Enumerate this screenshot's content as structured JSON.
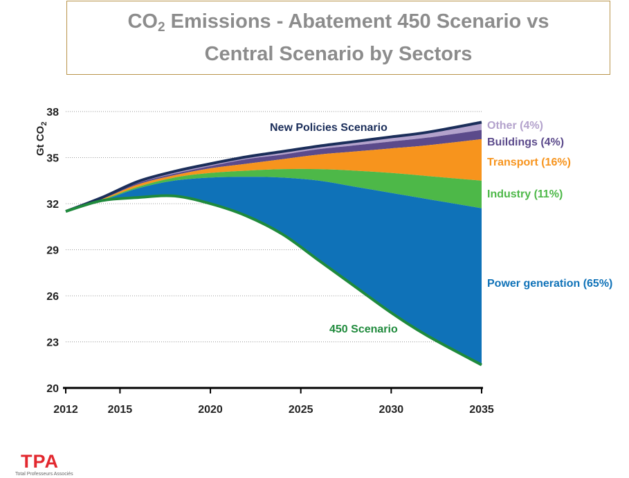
{
  "title": {
    "line1_main": "CO",
    "line1_sub": "2",
    "line1_rest": " Emissions - Abatement 450 Scenario vs",
    "line2": "Central Scenario by Sectors"
  },
  "logo": {
    "mark": "TPA",
    "tagline": "Total Professeurs Associés"
  },
  "colors": {
    "power": "#0f72b8",
    "industry": "#4db848",
    "transport": "#f7941d",
    "buildings": "#5b4a8b",
    "other": "#b3a2cc",
    "new_policies_line": "#1b2e5a",
    "scenario450_line": "#1f8a3c",
    "axis": "#000000",
    "grid": "#999999",
    "logo": "#e2282f"
  },
  "chart_data": {
    "type": "area",
    "ylabel": "Gt CO2",
    "ylabel_main": "Gt CO",
    "ylabel_sub": "2",
    "xlabel": "",
    "xlim": [
      2012,
      2035
    ],
    "ylim": [
      20,
      38
    ],
    "xticks": [
      2012,
      2015,
      2020,
      2025,
      2030,
      2035
    ],
    "yticks": [
      20,
      23,
      26,
      29,
      32,
      35,
      38
    ],
    "grid": "horizontal dotted",
    "x": [
      2012,
      2014,
      2016,
      2018,
      2020,
      2022,
      2024,
      2026,
      2028,
      2030,
      2032,
      2035
    ],
    "series": [
      {
        "name": "450 Scenario",
        "role": "baseline",
        "color": "#1f8a3c",
        "values": [
          31.5,
          32.2,
          32.4,
          32.5,
          32.0,
          31.2,
          30.0,
          28.3,
          26.6,
          24.9,
          23.4,
          21.5
        ]
      },
      {
        "name": "Power generation (65%)",
        "color": "#0f72b8",
        "values": [
          31.5,
          32.2,
          33.0,
          33.5,
          33.7,
          33.75,
          33.7,
          33.5,
          33.1,
          32.7,
          32.3,
          31.7
        ]
      },
      {
        "name": "Industry (11%)",
        "color": "#4db848",
        "values": [
          31.5,
          32.25,
          33.1,
          33.7,
          34.0,
          34.15,
          34.25,
          34.25,
          34.15,
          34.0,
          33.8,
          33.5
        ]
      },
      {
        "name": "Transport (16%)",
        "color": "#f7941d",
        "values": [
          31.5,
          32.3,
          33.25,
          33.85,
          34.3,
          34.6,
          34.9,
          35.2,
          35.4,
          35.6,
          35.8,
          36.2
        ]
      },
      {
        "name": "Buildings (4%)",
        "color": "#5b4a8b",
        "values": [
          31.5,
          32.35,
          33.35,
          33.95,
          34.45,
          34.9,
          35.2,
          35.55,
          35.8,
          36.05,
          36.3,
          36.8
        ]
      },
      {
        "name": "Other (4%)",
        "color": "#b3a2cc",
        "values": [
          31.5,
          32.4,
          33.45,
          34.1,
          34.6,
          35.05,
          35.4,
          35.75,
          36.05,
          36.35,
          36.65,
          37.3
        ]
      }
    ],
    "annotations": [
      {
        "text": "New Policies Scenario",
        "color": "#1b2e5a"
      },
      {
        "text": "450 Scenario",
        "color": "#1f8a3c"
      }
    ]
  }
}
